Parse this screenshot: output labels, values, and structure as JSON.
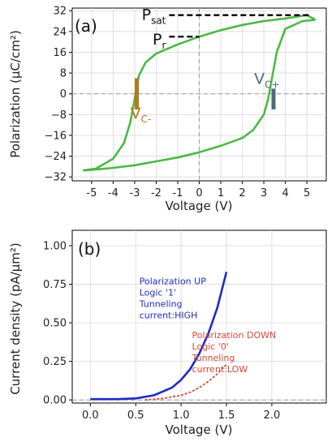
{
  "colors": {
    "loop": "#4cb944",
    "up": "#1f2bc4",
    "down": "#d9473a",
    "vcminus": "#b5781e",
    "vcplus": "#4f6a7a"
  },
  "chart_data": [
    {
      "type": "line",
      "panel_label": "(a)",
      "xlabel": "Voltage (V)",
      "ylabel": "Polarization (μC/cm²)",
      "xlim": [
        -5.9,
        5.9
      ],
      "ylim": [
        -33.5,
        33
      ],
      "xticks": [
        -5,
        -4,
        -3,
        -2,
        -1,
        0,
        1,
        2,
        3,
        4,
        5
      ],
      "xtick_labels": [
        "-5",
        "-4",
        "-3",
        "-2",
        "-1",
        "0",
        "1",
        "2",
        "3",
        "4",
        "5"
      ],
      "yticks": [
        32,
        24,
        16,
        8,
        0,
        -8,
        -16,
        -24,
        -32
      ],
      "ytick_labels": [
        "32",
        "24",
        "16",
        "8",
        "0",
        "−8",
        "−16",
        "−24",
        "−32"
      ],
      "grid": true,
      "series": [
        {
          "x": [
            -5.4,
            -4.8,
            -4.0,
            -3.5,
            -3.2,
            -3.0,
            -2.9,
            -2.8,
            -2.5,
            -2.0,
            -1.0,
            0.0,
            1.0,
            2.0,
            3.0,
            4.0,
            5.0,
            5.4
          ],
          "y": [
            -29.5,
            -28.8,
            -25.0,
            -19.0,
            -11.0,
            -2.0,
            3.0,
            7.0,
            12.0,
            15.5,
            19.0,
            22.0,
            24.5,
            26.5,
            28.0,
            29.0,
            30.3,
            28.5
          ]
        },
        {
          "x": [
            5.4,
            4.8,
            4.0,
            3.6,
            3.4,
            3.2,
            3.0,
            2.5,
            2.0,
            1.0,
            0.0,
            -1.0,
            -2.0,
            -3.0,
            -4.0,
            -5.0,
            -5.4
          ],
          "y": [
            28.5,
            28.0,
            25.0,
            16.0,
            7.0,
            -2.0,
            -8.0,
            -14.0,
            -17.0,
            -20.0,
            -22.5,
            -24.5,
            -26.0,
            -27.5,
            -28.5,
            -29.3,
            -29.5
          ]
        }
      ],
      "annotations": {
        "psat": {
          "base": "P",
          "sub": "sat",
          "value": 30.3
        },
        "pr": {
          "base": "P",
          "sub": "r",
          "value": 22.0
        },
        "vcminus": {
          "base": "V",
          "sub": "C-",
          "value": -2.9
        },
        "vcplus": {
          "base": "V",
          "sub": "C+",
          "value": 3.45
        }
      }
    },
    {
      "type": "line",
      "panel_label": "(b)",
      "xlabel": "Voltage (V)",
      "ylabel": "Current density (pA/μm²)",
      "xlim": [
        -0.2,
        2.6
      ],
      "ylim": [
        -0.02,
        1.1
      ],
      "xticks": [
        0.0,
        0.5,
        1.0,
        1.5,
        2.0
      ],
      "xtick_labels": [
        "0.0",
        "0.5",
        "1.0",
        "1.5",
        "2.0"
      ],
      "yticks": [
        0.0,
        0.25,
        0.5,
        0.75,
        1.0
      ],
      "ytick_labels": [
        "0.00",
        "0.25",
        "0.50",
        "0.75",
        "1.00"
      ],
      "grid": true,
      "series": [
        {
          "x": [
            0.0,
            0.3,
            0.5,
            0.7,
            0.9,
            1.0,
            1.1,
            1.2,
            1.3,
            1.4,
            1.5
          ],
          "y": [
            0.005,
            0.005,
            0.01,
            0.03,
            0.08,
            0.13,
            0.2,
            0.3,
            0.43,
            0.6,
            0.83
          ]
        },
        {
          "x": [
            0.6,
            0.8,
            1.0,
            1.1,
            1.2,
            1.3,
            1.4,
            1.5
          ],
          "y": [
            0.0,
            0.01,
            0.03,
            0.05,
            0.08,
            0.12,
            0.17,
            0.23
          ]
        }
      ],
      "notes": [
        {
          "lines": [
            "Polarization UP",
            "Logic '1'",
            "Tunneling",
            "current:HIGH"
          ]
        },
        {
          "lines": [
            "Polarization DOWN",
            "Logic '0'",
            "Tunneling",
            "current:LOW"
          ]
        }
      ]
    }
  ]
}
